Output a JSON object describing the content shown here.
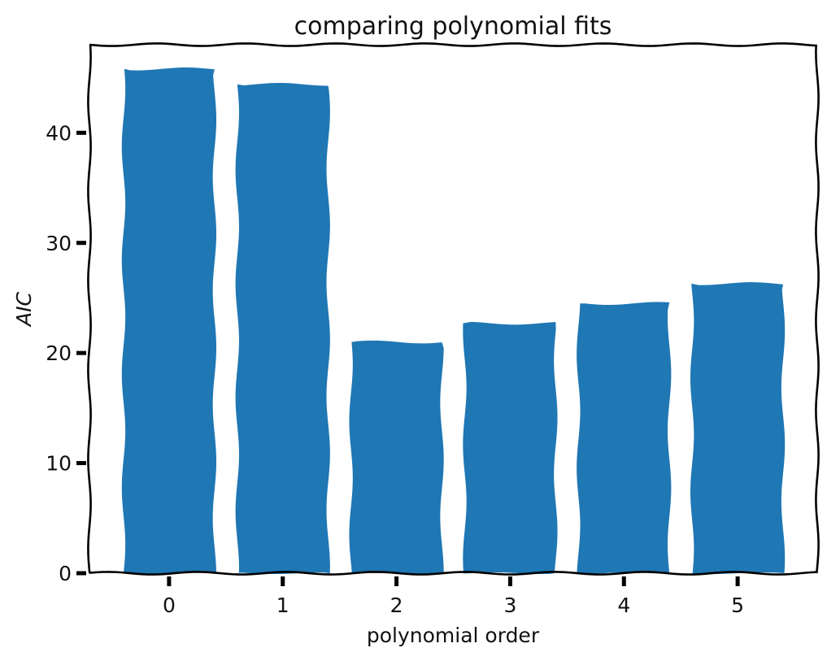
{
  "chart_data": {
    "type": "bar",
    "title": "comparing polynomial fits",
    "xlabel": "polynomial order",
    "ylabel": "AIC",
    "categories": [
      "0",
      "1",
      "2",
      "3",
      "4",
      "5"
    ],
    "values": [
      45.8,
      44.4,
      21.0,
      22.7,
      24.5,
      26.3
    ],
    "ylim": [
      0,
      48
    ],
    "yticks": [
      "0",
      "10",
      "20",
      "30",
      "40"
    ],
    "grid": false,
    "bar_color": "#1f77b4",
    "axis_color": "#000000"
  }
}
